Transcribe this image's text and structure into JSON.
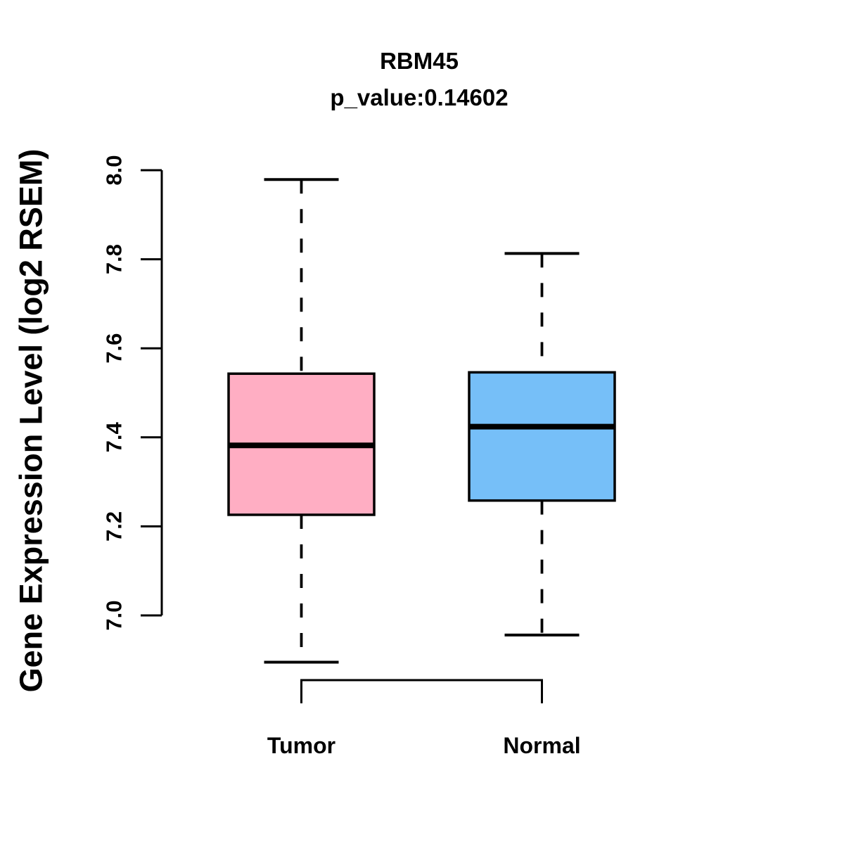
{
  "chart_data": {
    "type": "boxplot",
    "title": "RBM45",
    "subtitle": "p_value:0.14602",
    "ylabel": "Gene Expression Level (log2 RSEM)",
    "xlabel": "",
    "ylim": [
      6.85,
      8.05
    ],
    "y_ticks": [
      7.0,
      7.2,
      7.4,
      7.6,
      7.8,
      8.0
    ],
    "grid": false,
    "legend": "none",
    "categories": [
      "Tumor",
      "Normal"
    ],
    "series": [
      {
        "name": "Tumor",
        "color": "#FFAEC3",
        "whisker_low": 6.895,
        "q1": 7.226,
        "median": 7.382,
        "q3": 7.543,
        "whisker_high": 7.979
      },
      {
        "name": "Normal",
        "color": "#76BFF8",
        "whisker_low": 6.956,
        "q1": 7.258,
        "median": 7.424,
        "q3": 7.546,
        "whisker_high": 7.813
      }
    ],
    "line_color": "#000000",
    "whisker_style": "dashed"
  }
}
